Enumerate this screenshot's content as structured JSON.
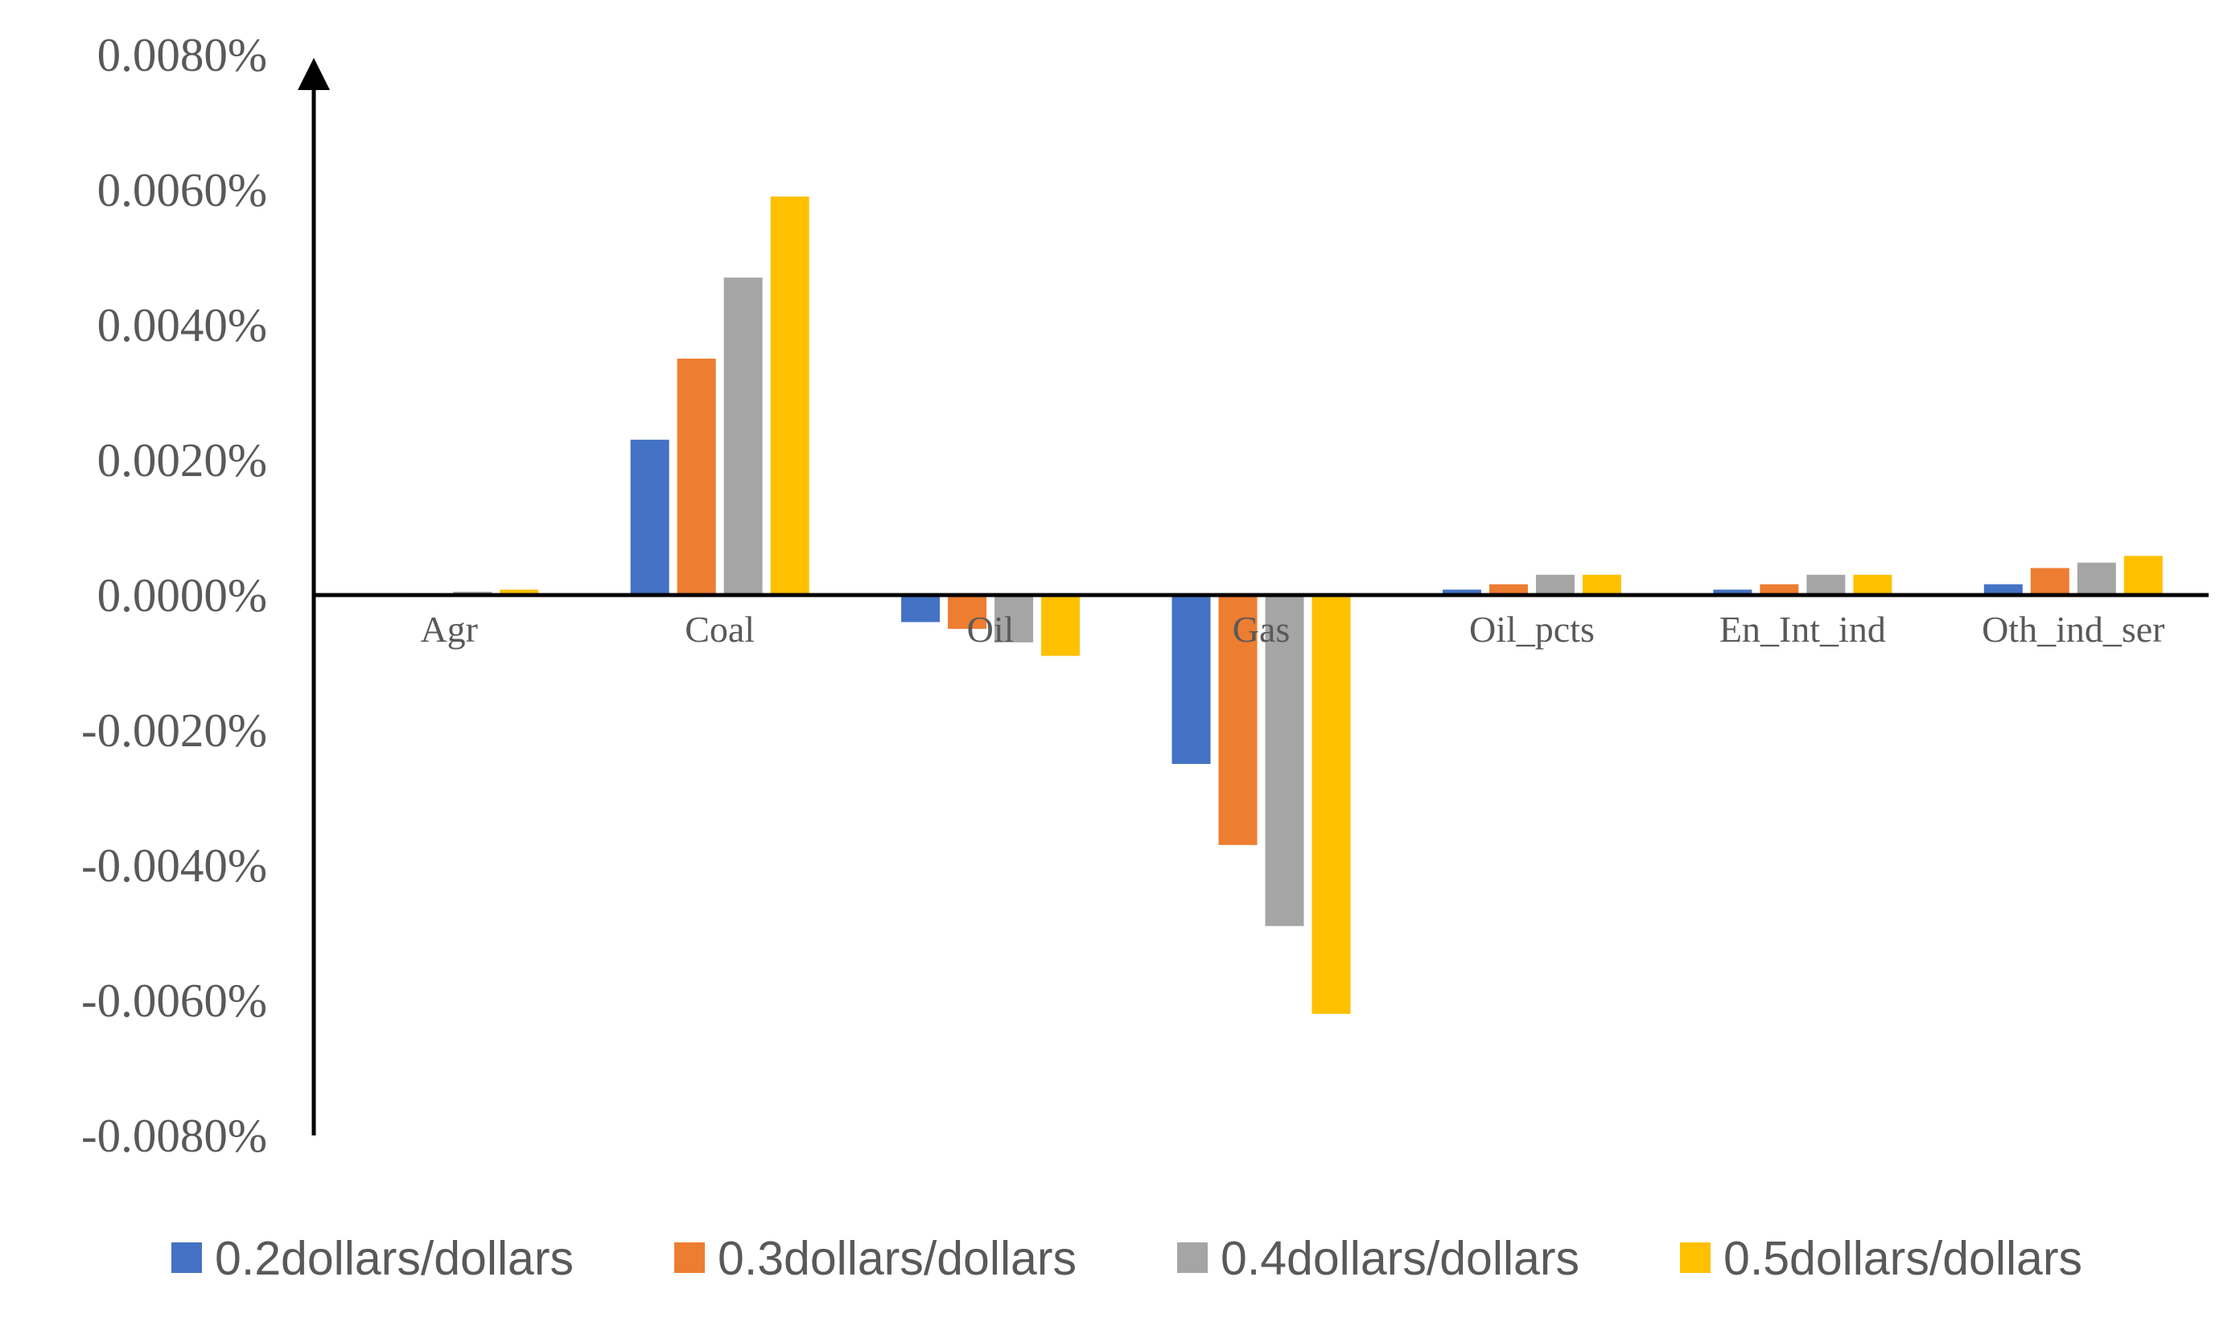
{
  "chart_data": {
    "type": "bar",
    "title": "",
    "xlabel": "",
    "ylabel": "",
    "ylim": [
      -0.008,
      0.008
    ],
    "y_unit": "percent",
    "yticks": [
      "0.0080%",
      "0.0060%",
      "0.0040%",
      "0.0020%",
      "0.0000%",
      "-0.0020%",
      "-0.0040%",
      "-0.0060%",
      "-0.0080%"
    ],
    "ytick_values": [
      0.008,
      0.006,
      0.004,
      0.002,
      0.0,
      -0.002,
      -0.004,
      -0.006,
      -0.008
    ],
    "categories": [
      "Agr",
      "Coal",
      "Oil",
      "Gas",
      "Oil_pcts",
      "En_Int_ind",
      "Oth_ind_ser"
    ],
    "series": [
      {
        "name": "0.2dollars/dollars",
        "color": "#4472C4",
        "values": [
          2e-05,
          0.0023,
          -0.0004,
          -0.0025,
          8e-05,
          8e-05,
          0.00016
        ]
      },
      {
        "name": "0.3dollars/dollars",
        "color": "#ED7D31",
        "values": [
          3e-05,
          0.0035,
          -0.0005,
          -0.0037,
          0.00016,
          0.00016,
          0.0004
        ]
      },
      {
        "name": "0.4dollars/dollars",
        "color": "#A5A5A5",
        "values": [
          5e-05,
          0.0047,
          -0.0007,
          -0.0049,
          0.0003,
          0.0003,
          0.00048
        ]
      },
      {
        "name": "0.5dollars/dollars",
        "color": "#FFC000",
        "values": [
          8e-05,
          0.0059,
          -0.0009,
          -0.0062,
          0.0003,
          0.0003,
          0.00058
        ]
      }
    ],
    "legend_position": "bottom",
    "grid": false
  }
}
